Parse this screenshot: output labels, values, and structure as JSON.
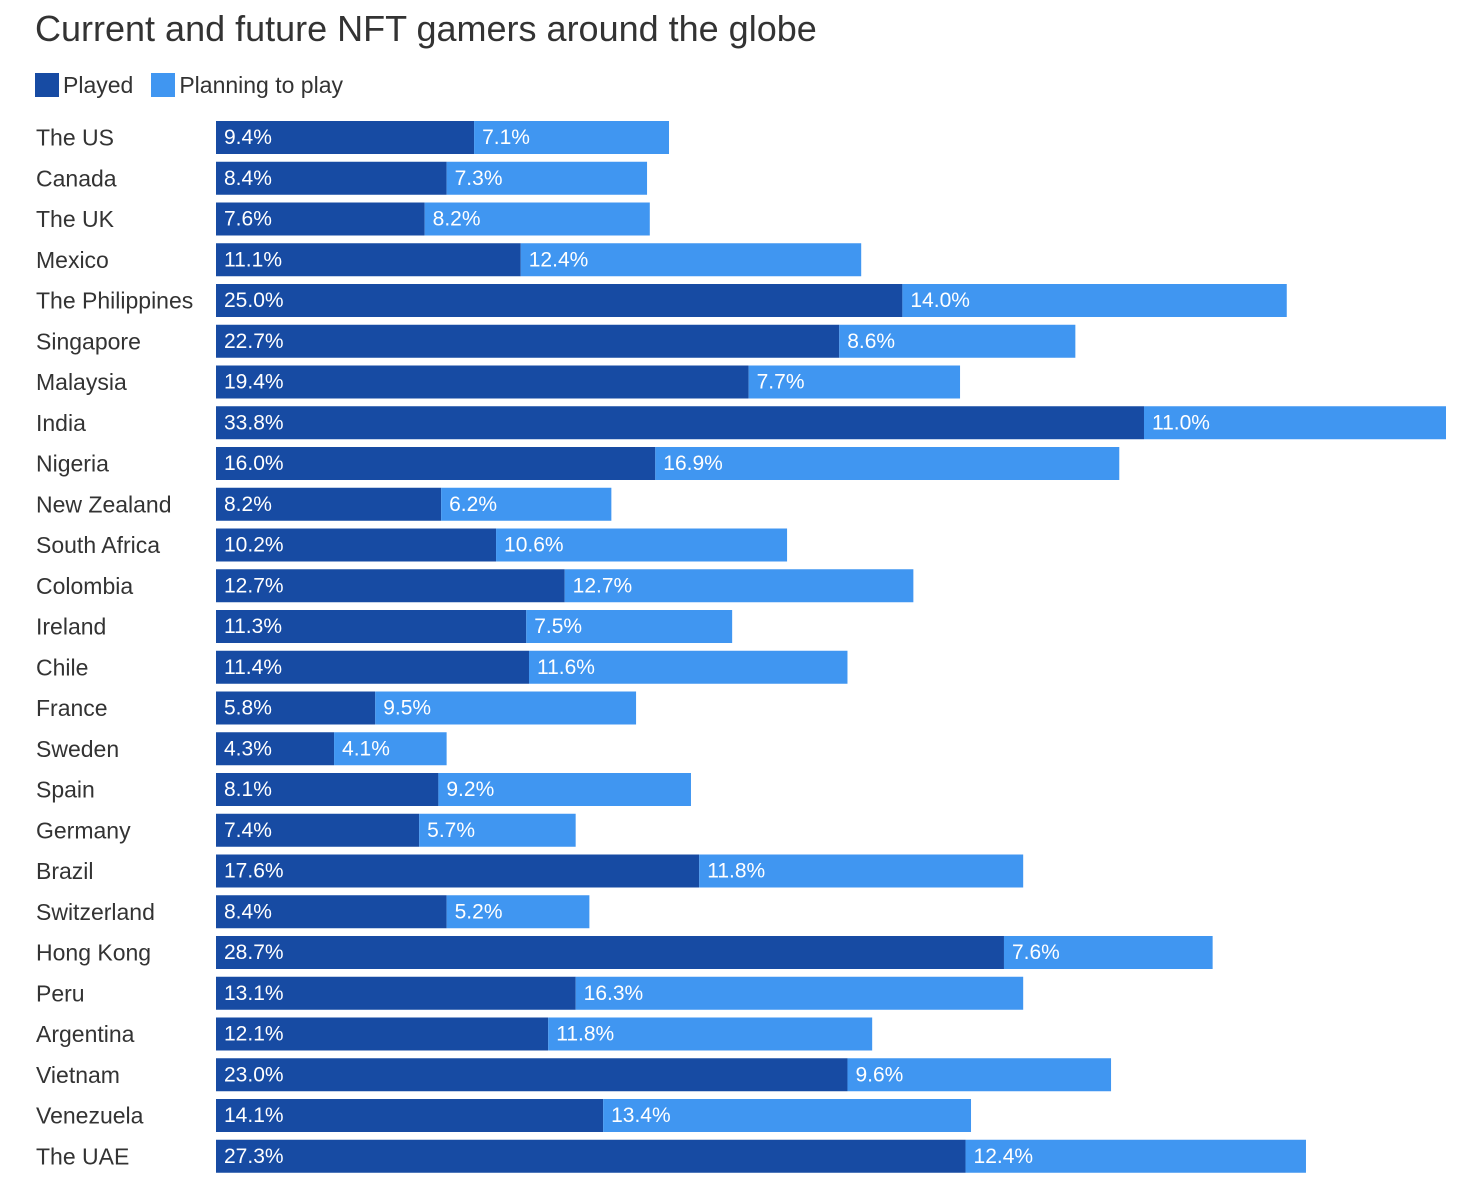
{
  "chart_data": {
    "type": "bar",
    "orientation": "horizontal",
    "stacked": true,
    "title": "Current and future NFT gamers around the globe",
    "xlabel": "",
    "ylabel": "",
    "value_suffix": "%",
    "grid": false,
    "legend_position": "top-left",
    "categories": [
      "The US",
      "Canada",
      "The UK",
      "Mexico",
      "The Philippines",
      "Singapore",
      "Malaysia",
      "India",
      "Nigeria",
      "New Zealand",
      "South Africa",
      "Colombia",
      "Ireland",
      "Chile",
      "France",
      "Sweden",
      "Spain",
      "Germany",
      "Brazil",
      "Switzerland",
      "Hong Kong",
      "Peru",
      "Argentina",
      "Vietnam",
      "Venezuela",
      "The UAE"
    ],
    "series": [
      {
        "name": "Played",
        "color": "#174ba3",
        "values": [
          9.4,
          8.4,
          7.6,
          11.1,
          25.0,
          22.7,
          19.4,
          33.8,
          16.0,
          8.2,
          10.2,
          12.7,
          11.3,
          11.4,
          5.8,
          4.3,
          8.1,
          7.4,
          17.6,
          8.4,
          28.7,
          13.1,
          12.1,
          23.0,
          14.1,
          27.3
        ]
      },
      {
        "name": "Planning to play",
        "color": "#4096f1",
        "values": [
          7.1,
          7.3,
          8.2,
          12.4,
          14.0,
          8.6,
          7.7,
          11.0,
          16.9,
          6.2,
          10.6,
          12.7,
          7.5,
          11.6,
          9.5,
          4.1,
          9.2,
          5.7,
          11.8,
          5.2,
          7.6,
          16.3,
          11.8,
          9.6,
          13.4,
          12.4
        ]
      }
    ],
    "xlim": [
      0,
      44.8
    ]
  }
}
